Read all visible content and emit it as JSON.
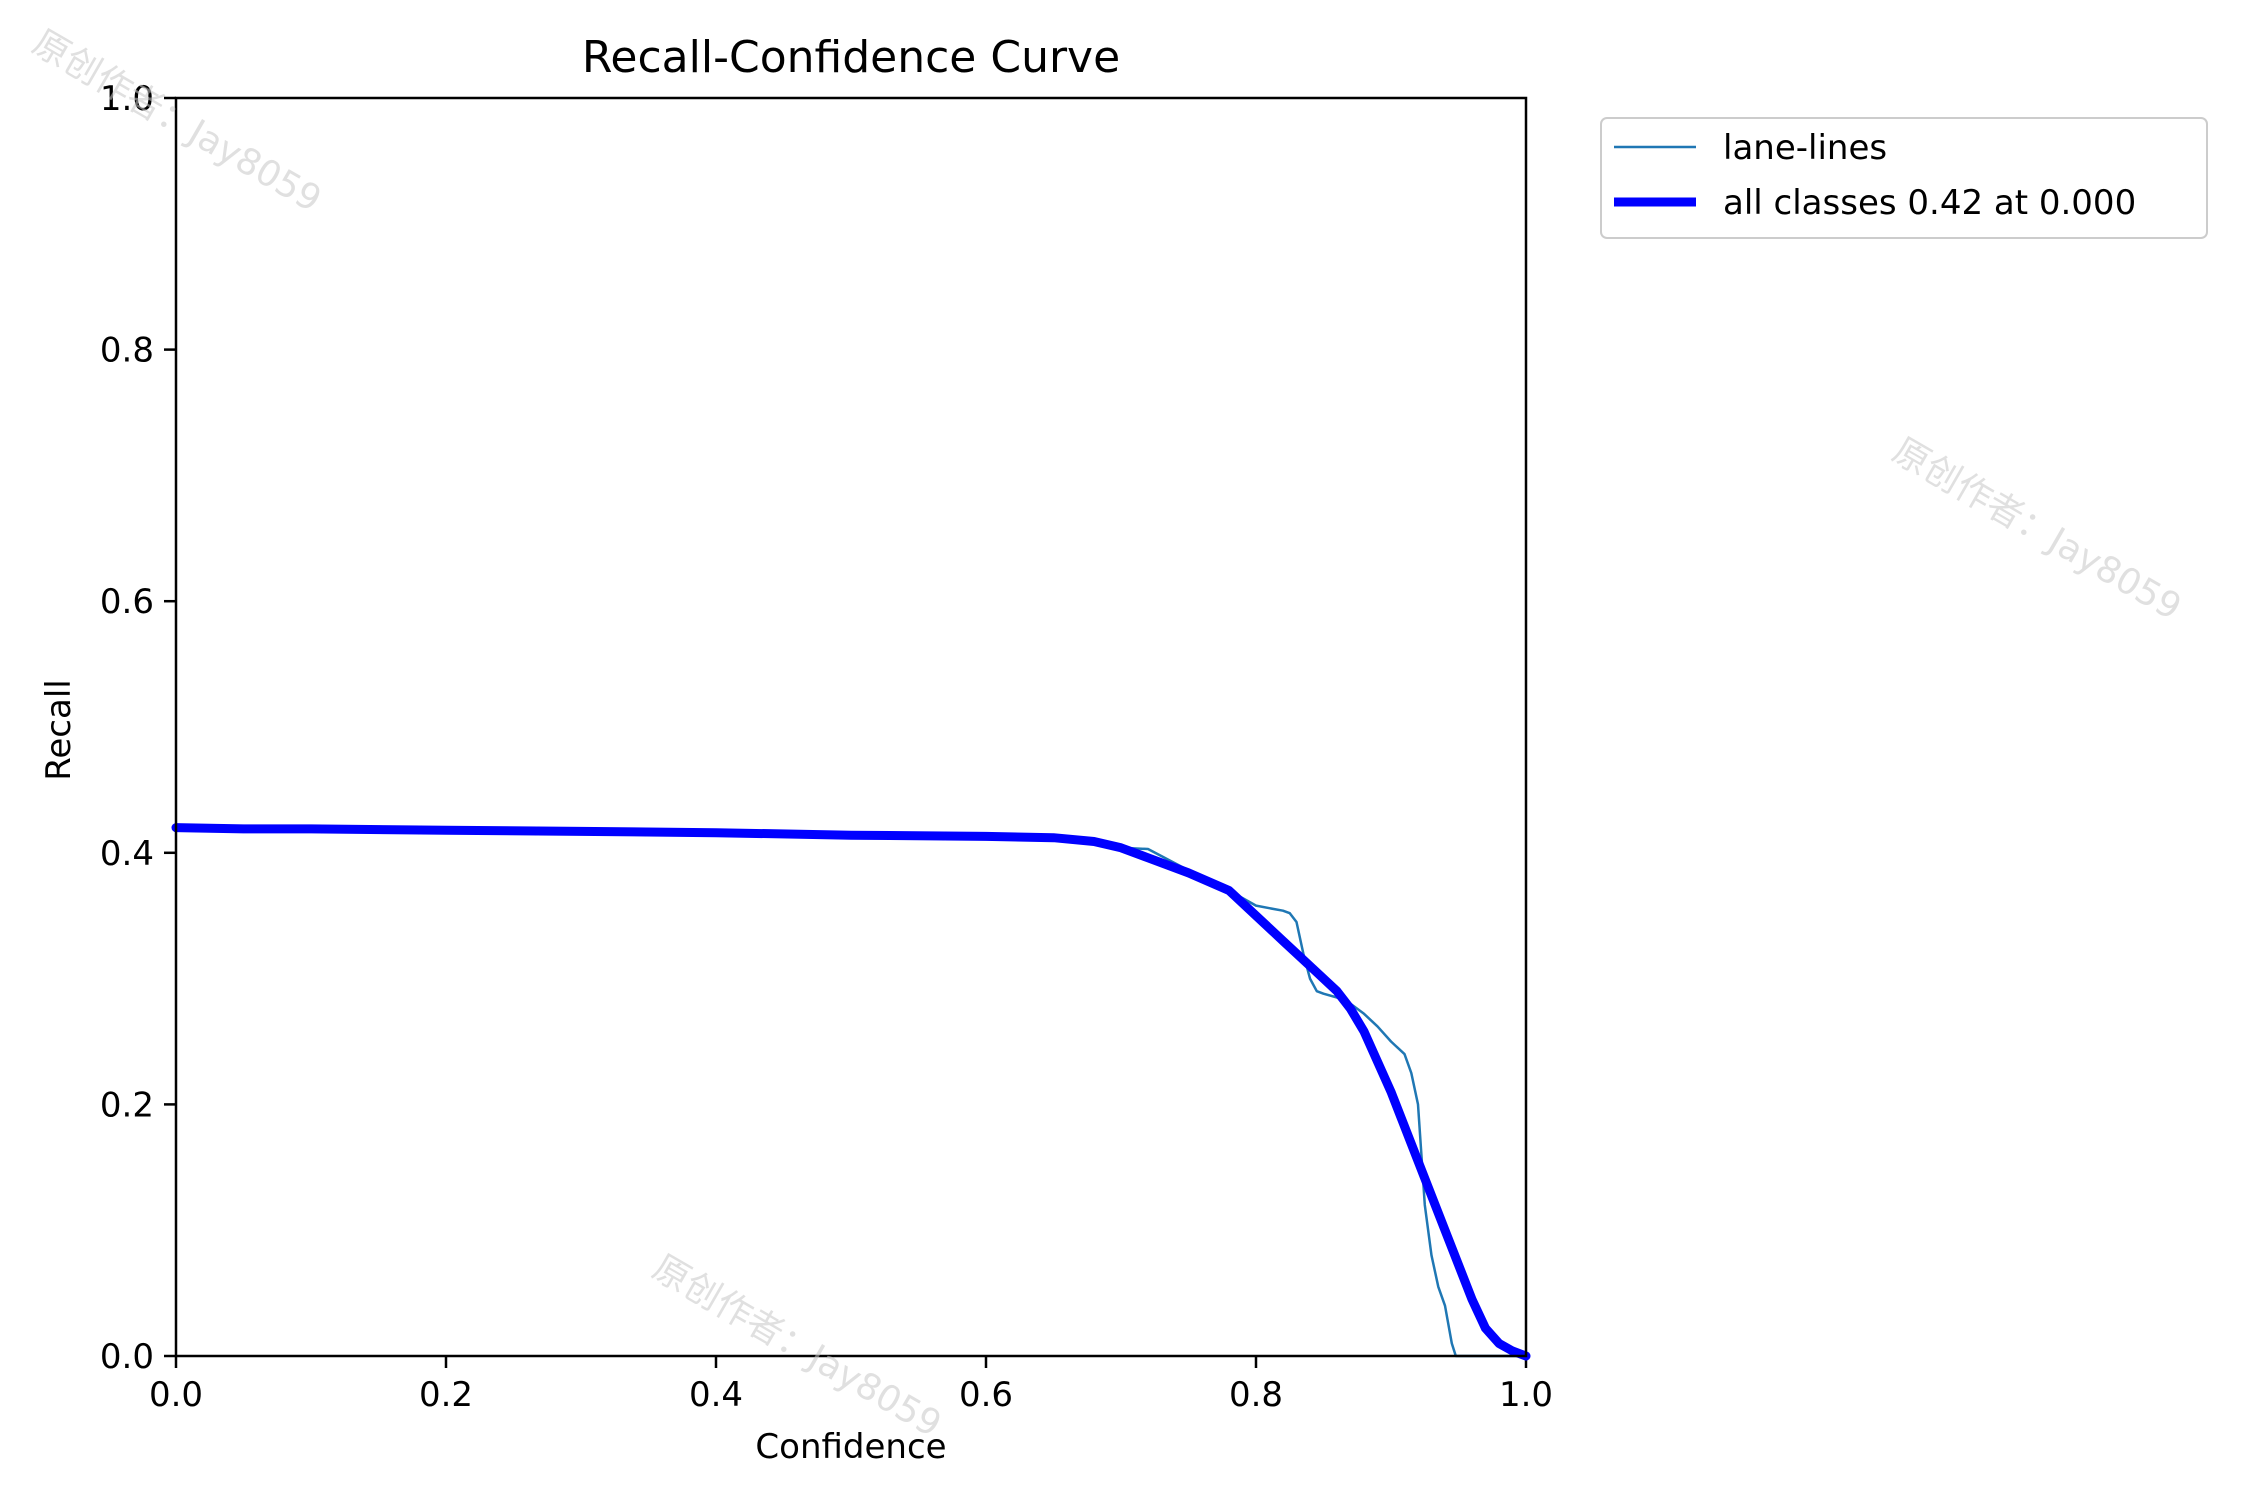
{
  "chart_data": {
    "type": "line",
    "title": "Recall-Confidence Curve",
    "xlabel": "Confidence",
    "ylabel": "Recall",
    "xlim": [
      0,
      1
    ],
    "ylim": [
      0,
      1
    ],
    "xticks": [
      "0.0",
      "0.2",
      "0.4",
      "0.6",
      "0.8",
      "1.0"
    ],
    "yticks": [
      "0.0",
      "0.2",
      "0.4",
      "0.6",
      "0.8",
      "1.0"
    ],
    "grid": false,
    "legend_position": "outside-top-right",
    "series": [
      {
        "name": "lane-lines",
        "color": "#1f77b4",
        "x": [
          0.0,
          0.05,
          0.1,
          0.2,
          0.3,
          0.4,
          0.5,
          0.6,
          0.65,
          0.68,
          0.7,
          0.72,
          0.75,
          0.78,
          0.8,
          0.81,
          0.82,
          0.825,
          0.83,
          0.835,
          0.84,
          0.845,
          0.85,
          0.86,
          0.87,
          0.88,
          0.89,
          0.9,
          0.91,
          0.915,
          0.92,
          0.925,
          0.93,
          0.935,
          0.94,
          0.945,
          0.948,
          0.95,
          0.96,
          1.0
        ],
        "y": [
          0.42,
          0.419,
          0.419,
          0.418,
          0.417,
          0.416,
          0.414,
          0.413,
          0.412,
          0.409,
          0.404,
          0.403,
          0.386,
          0.37,
          0.358,
          0.356,
          0.354,
          0.352,
          0.345,
          0.32,
          0.3,
          0.29,
          0.288,
          0.285,
          0.28,
          0.272,
          0.262,
          0.25,
          0.24,
          0.225,
          0.2,
          0.12,
          0.08,
          0.055,
          0.04,
          0.01,
          0.0,
          0.0,
          0.0,
          0.0
        ]
      },
      {
        "name": "all classes 0.42 at 0.000",
        "color": "#0000ff",
        "x": [
          0.0,
          0.05,
          0.1,
          0.2,
          0.3,
          0.4,
          0.5,
          0.6,
          0.65,
          0.68,
          0.7,
          0.72,
          0.75,
          0.78,
          0.8,
          0.82,
          0.84,
          0.86,
          0.87,
          0.88,
          0.9,
          0.92,
          0.94,
          0.96,
          0.97,
          0.98,
          0.99,
          1.0
        ],
        "y": [
          0.42,
          0.419,
          0.419,
          0.418,
          0.417,
          0.416,
          0.414,
          0.413,
          0.412,
          0.409,
          0.404,
          0.396,
          0.384,
          0.37,
          0.35,
          0.33,
          0.31,
          0.29,
          0.276,
          0.258,
          0.21,
          0.155,
          0.1,
          0.045,
          0.022,
          0.01,
          0.004,
          0.0
        ]
      }
    ]
  },
  "watermark": "原创作者：Jay8059"
}
